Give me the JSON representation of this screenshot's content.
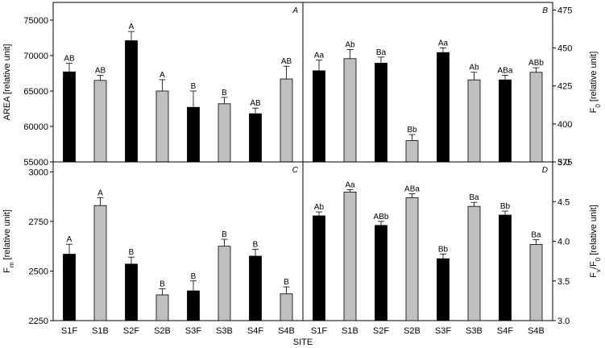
{
  "figure": {
    "xlabel": "SITE"
  },
  "chart_data": [
    {
      "type": "bar",
      "panel": "A",
      "ylabel": "AREA [relative unit]",
      "ylim": [
        55000,
        77500
      ],
      "yticks": [
        55000,
        60000,
        65000,
        70000,
        75000
      ],
      "categories": [
        "S1F",
        "S1B",
        "S2F",
        "S2B",
        "S3F",
        "S3B",
        "S4F",
        "S4B"
      ],
      "values": [
        67700,
        66500,
        72100,
        65000,
        62700,
        63200,
        61800,
        66700
      ],
      "errors": [
        1200,
        700,
        1300,
        1600,
        2300,
        900,
        800,
        1800
      ],
      "labels": [
        "AB",
        "AB",
        "A",
        "A",
        "B",
        "B",
        "AB",
        "AB"
      ],
      "fills": [
        "#000000",
        "#bfbfbf",
        "#000000",
        "#bfbfbf",
        "#000000",
        "#bfbfbf",
        "#000000",
        "#bfbfbf"
      ]
    },
    {
      "type": "bar",
      "panel": "B",
      "ylabel": "F0 [relative unit]",
      "ylabel_main": "F",
      "ylabel_sub": "0",
      "ylabel_rest": " [relative unit]",
      "ylim": [
        375,
        480
      ],
      "yticks": [
        375,
        400,
        425,
        450,
        475
      ],
      "categories": [
        "S1F",
        "S1B",
        "S2F",
        "S2B",
        "S3F",
        "S3B",
        "S4F",
        "S4B"
      ],
      "values": [
        435,
        443,
        440,
        389,
        447,
        429,
        429,
        434
      ],
      "errors": [
        7,
        6,
        4,
        4,
        3,
        5,
        3,
        3
      ],
      "labels": [
        "Aa",
        "Ab",
        "Ba",
        "Bb",
        "Aa",
        "Ab",
        "ABa",
        "ABb"
      ],
      "fills": [
        "#000000",
        "#bfbfbf",
        "#000000",
        "#bfbfbf",
        "#000000",
        "#bfbfbf",
        "#000000",
        "#bfbfbf"
      ]
    },
    {
      "type": "bar",
      "panel": "C",
      "ylabel": "Fm [relative unit]",
      "ylabel_main": "F",
      "ylabel_sub": "m",
      "ylabel_rest": " [relative unit]",
      "ylim": [
        2250,
        3050
      ],
      "yticks": [
        2250,
        2500,
        2750,
        3000
      ],
      "categories": [
        "S1F",
        "S1B",
        "S2F",
        "S2B",
        "S3F",
        "S3B",
        "S4F",
        "S4B"
      ],
      "values": [
        2585,
        2830,
        2535,
        2380,
        2400,
        2625,
        2575,
        2385
      ],
      "errors": [
        50,
        40,
        35,
        30,
        50,
        35,
        35,
        35
      ],
      "labels": [
        "A",
        "A",
        "B",
        "B",
        "B",
        "B",
        "B",
        "B"
      ],
      "fills": [
        "#000000",
        "#bfbfbf",
        "#000000",
        "#bfbfbf",
        "#000000",
        "#bfbfbf",
        "#000000",
        "#bfbfbf"
      ]
    },
    {
      "type": "bar",
      "panel": "D",
      "ylabel": "Fv/F0 [relative unit]",
      "ylim": [
        3.0,
        5.0
      ],
      "yticks": [
        "3.0",
        "3.5",
        "4.0",
        "4.5",
        "5.0"
      ],
      "categories": [
        "S1F",
        "S1B",
        "S2F",
        "S2B",
        "S3F",
        "S3B",
        "S4F",
        "S4B"
      ],
      "values": [
        4.32,
        4.62,
        4.2,
        4.55,
        3.78,
        4.44,
        4.33,
        3.96
      ],
      "errors": [
        0.05,
        0.03,
        0.05,
        0.05,
        0.06,
        0.05,
        0.05,
        0.06
      ],
      "labels": [
        "Ab",
        "Aa",
        "ABb",
        "ABa",
        "Bb",
        "Ba",
        "Bb",
        "Ba"
      ],
      "fills": [
        "#000000",
        "#bfbfbf",
        "#000000",
        "#bfbfbf",
        "#000000",
        "#bfbfbf",
        "#000000",
        "#bfbfbf"
      ]
    }
  ]
}
